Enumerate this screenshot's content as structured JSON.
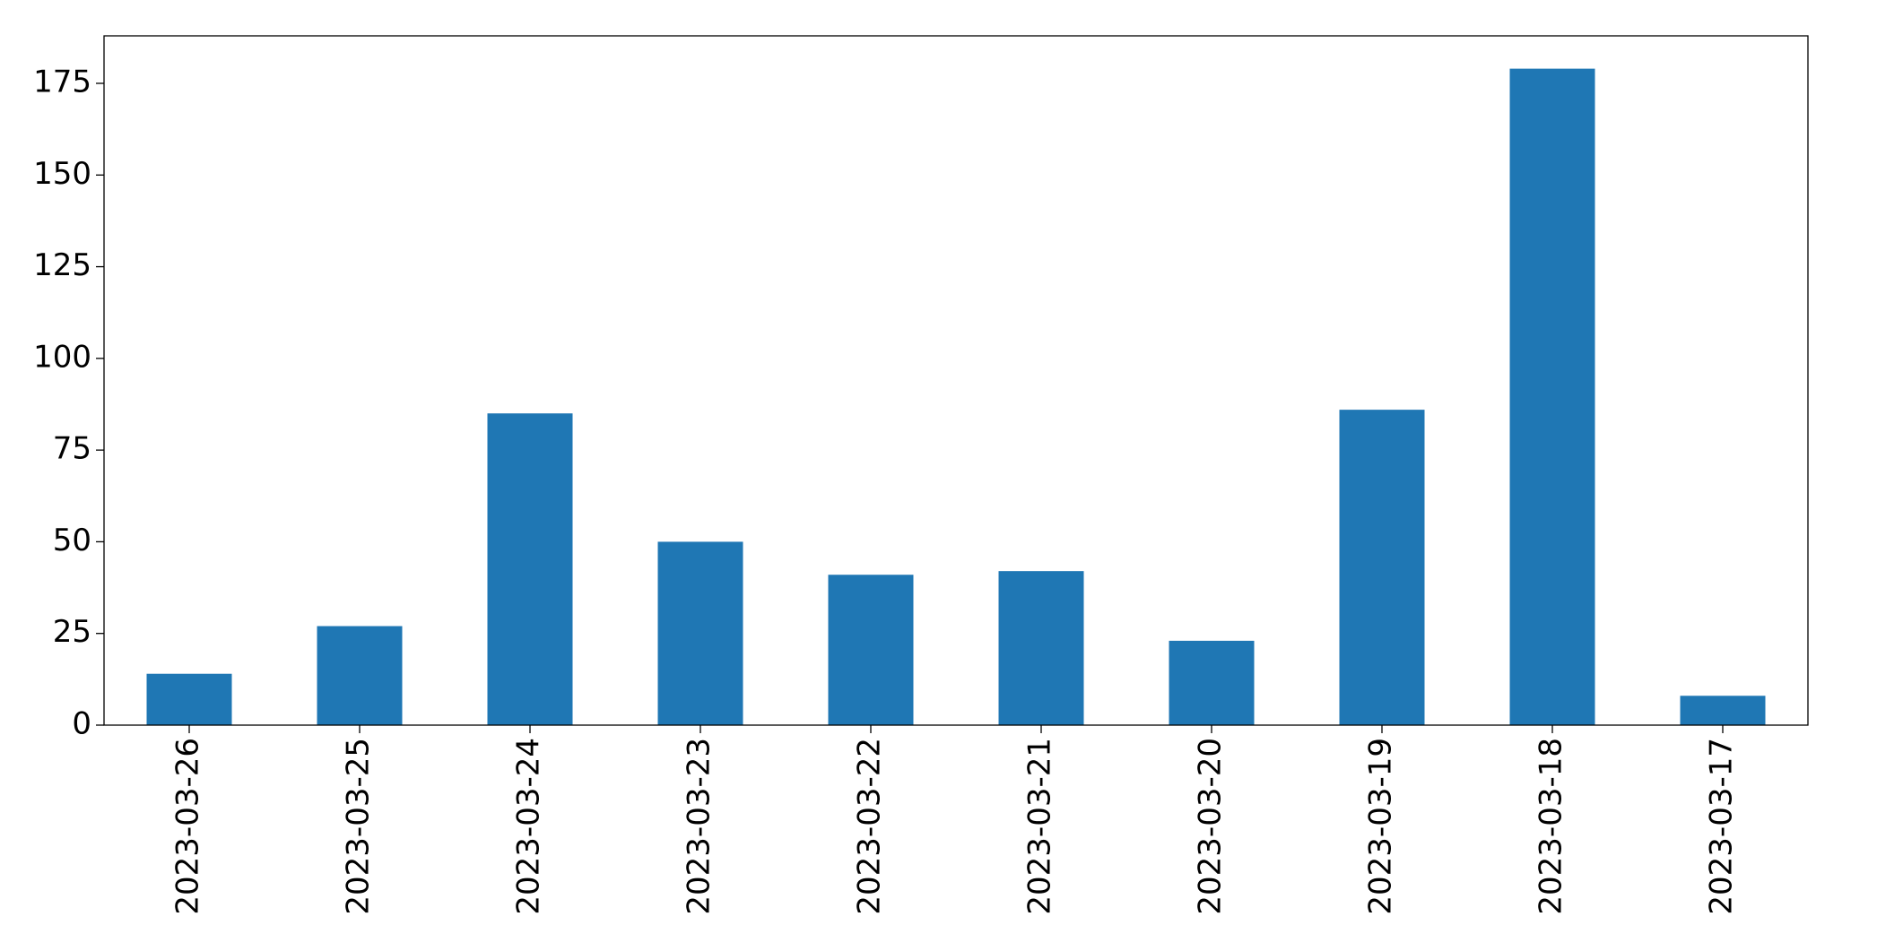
{
  "chart_data": {
    "type": "bar",
    "categories": [
      "2023-03-26",
      "2023-03-25",
      "2023-03-24",
      "2023-03-23",
      "2023-03-22",
      "2023-03-21",
      "2023-03-20",
      "2023-03-19",
      "2023-03-18",
      "2023-03-17"
    ],
    "values": [
      14,
      27,
      85,
      50,
      41,
      42,
      23,
      86,
      179,
      8
    ],
    "color": "#1f77b4",
    "ylim": [
      0,
      187.95
    ],
    "yticks": [
      0,
      25,
      50,
      75,
      100,
      125,
      150,
      175
    ],
    "grid": false
  }
}
